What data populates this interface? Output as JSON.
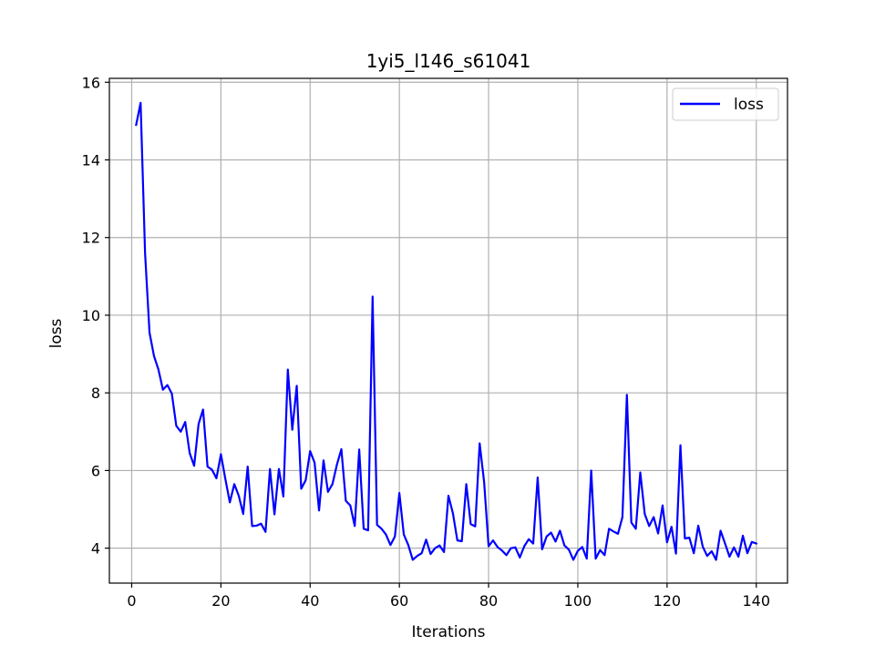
{
  "chart_data": {
    "type": "line",
    "title": "1yi5_l146_s61041",
    "xlabel": "Iterations",
    "ylabel": "loss",
    "xlim": [
      -5,
      147
    ],
    "ylim": [
      3.1,
      16.1
    ],
    "xticks": [
      0,
      20,
      40,
      60,
      80,
      100,
      120,
      140
    ],
    "yticks": [
      4,
      6,
      8,
      10,
      12,
      14,
      16
    ],
    "grid": true,
    "legend_position": "top-right",
    "series": [
      {
        "name": "loss",
        "color": "#0000ff",
        "x": [
          1,
          2,
          3,
          4,
          5,
          6,
          7,
          8,
          9,
          10,
          11,
          12,
          13,
          14,
          15,
          16,
          17,
          18,
          19,
          20,
          21,
          22,
          23,
          24,
          25,
          26,
          27,
          28,
          29,
          30,
          31,
          32,
          33,
          34,
          35,
          36,
          37,
          38,
          39,
          40,
          41,
          42,
          43,
          44,
          45,
          46,
          47,
          48,
          49,
          50,
          51,
          52,
          53,
          54,
          55,
          56,
          57,
          58,
          59,
          60,
          61,
          62,
          63,
          64,
          65,
          66,
          67,
          68,
          69,
          70,
          71,
          72,
          73,
          74,
          75,
          76,
          77,
          78,
          79,
          80,
          81,
          82,
          83,
          84,
          85,
          86,
          87,
          88,
          89,
          90,
          91,
          92,
          93,
          94,
          95,
          96,
          97,
          98,
          99,
          100,
          101,
          102,
          103,
          104,
          105,
          106,
          107,
          108,
          109,
          110,
          111,
          112,
          113,
          114,
          115,
          116,
          117,
          118,
          119,
          120,
          121,
          122,
          123,
          124,
          125,
          126,
          127,
          128,
          129,
          130,
          131,
          132,
          133,
          134,
          135,
          136,
          137,
          138,
          139,
          140
        ],
        "values": [
          14.9,
          15.47,
          11.6,
          9.55,
          8.95,
          8.6,
          8.08,
          8.2,
          7.98,
          7.15,
          7.0,
          7.25,
          6.45,
          6.12,
          7.2,
          7.57,
          6.1,
          6.02,
          5.8,
          6.42,
          5.78,
          5.18,
          5.65,
          5.35,
          4.88,
          6.1,
          4.57,
          4.58,
          4.63,
          4.42,
          6.04,
          4.87,
          6.04,
          5.33,
          8.6,
          7.05,
          8.18,
          5.53,
          5.75,
          6.5,
          6.2,
          4.97,
          6.26,
          5.45,
          5.65,
          6.15,
          6.55,
          5.22,
          5.1,
          4.57,
          6.54,
          4.5,
          4.46,
          10.48,
          4.6,
          4.5,
          4.35,
          4.08,
          4.3,
          5.42,
          4.35,
          4.08,
          3.7,
          3.8,
          3.87,
          4.22,
          3.85,
          4.0,
          4.07,
          3.9,
          5.35,
          4.9,
          4.2,
          4.18,
          5.65,
          4.62,
          4.56,
          6.7,
          5.7,
          4.05,
          4.2,
          4.03,
          3.94,
          3.82,
          4.0,
          4.02,
          3.76,
          4.05,
          4.23,
          4.12,
          5.82,
          3.97,
          4.3,
          4.4,
          4.17,
          4.45,
          4.07,
          3.96,
          3.7,
          3.93,
          4.03,
          3.73,
          6.0,
          3.73,
          3.95,
          3.82,
          4.5,
          4.43,
          4.37,
          4.8,
          7.95,
          4.66,
          4.5,
          5.95,
          4.88,
          4.57,
          4.8,
          4.38,
          5.1,
          4.15,
          4.55,
          3.86,
          6.65,
          4.25,
          4.27,
          3.87,
          4.58,
          4.04,
          3.8,
          3.92,
          3.7,
          4.45,
          4.12,
          3.78,
          4.02,
          3.78,
          4.32,
          3.87,
          4.16,
          4.12
        ]
      }
    ]
  }
}
